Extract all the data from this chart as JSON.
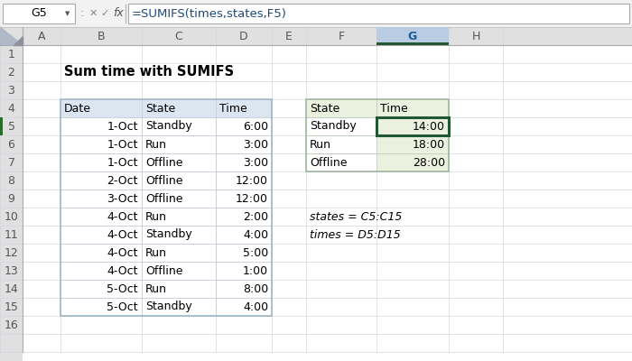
{
  "title": "Sum time with SUMIFS",
  "formula_bar_cell": "G5",
  "formula_bar_formula": "=SUMIFS(times,states,F5)",
  "col_headers": [
    "A",
    "B",
    "C",
    "D",
    "E",
    "F",
    "G",
    "H"
  ],
  "row_headers": [
    "1",
    "2",
    "3",
    "4",
    "5",
    "6",
    "7",
    "8",
    "9",
    "10",
    "11",
    "12",
    "13",
    "14",
    "15",
    "16"
  ],
  "left_table_headers": [
    "Date",
    "State",
    "Time"
  ],
  "left_table_data": [
    [
      "1-Oct",
      "Standby",
      "6:00"
    ],
    [
      "1-Oct",
      "Run",
      "3:00"
    ],
    [
      "1-Oct",
      "Offline",
      "3:00"
    ],
    [
      "2-Oct",
      "Offline",
      "12:00"
    ],
    [
      "3-Oct",
      "Offline",
      "12:00"
    ],
    [
      "4-Oct",
      "Run",
      "2:00"
    ],
    [
      "4-Oct",
      "Standby",
      "4:00"
    ],
    [
      "4-Oct",
      "Run",
      "5:00"
    ],
    [
      "4-Oct",
      "Offline",
      "1:00"
    ],
    [
      "5-Oct",
      "Run",
      "8:00"
    ],
    [
      "5-Oct",
      "Standby",
      "4:00"
    ]
  ],
  "right_table_headers": [
    "State",
    "Time"
  ],
  "right_table_data": [
    [
      "Standby",
      "14:00"
    ],
    [
      "Run",
      "18:00"
    ],
    [
      "Offline",
      "28:00"
    ]
  ],
  "notes": [
    "states = C5:C15",
    "times = D5:D15"
  ],
  "bg_color": "#ffffff",
  "toolbar_bg": "#f2f2f2",
  "header_row_col_bg": "#e0e0e0",
  "selected_col_bg": "#b8cce4",
  "selected_col_text": "#1f5c99",
  "left_table_header_bg": "#dce6f1",
  "right_table_header_bg": "#ebf1de",
  "right_time_col_bg": "#ebf1de",
  "selected_cell_border": "#215732",
  "grid_line_color": "#d0d8e0",
  "text_color": "#000000",
  "formula_text_color": "#1f497d",
  "formula_bar_bg": "#ffffff",
  "cell_name_bg": "#ffffff",
  "toolbar_border": "#c8c8c8",
  "row5_left_indicator": "#2d6a2d"
}
